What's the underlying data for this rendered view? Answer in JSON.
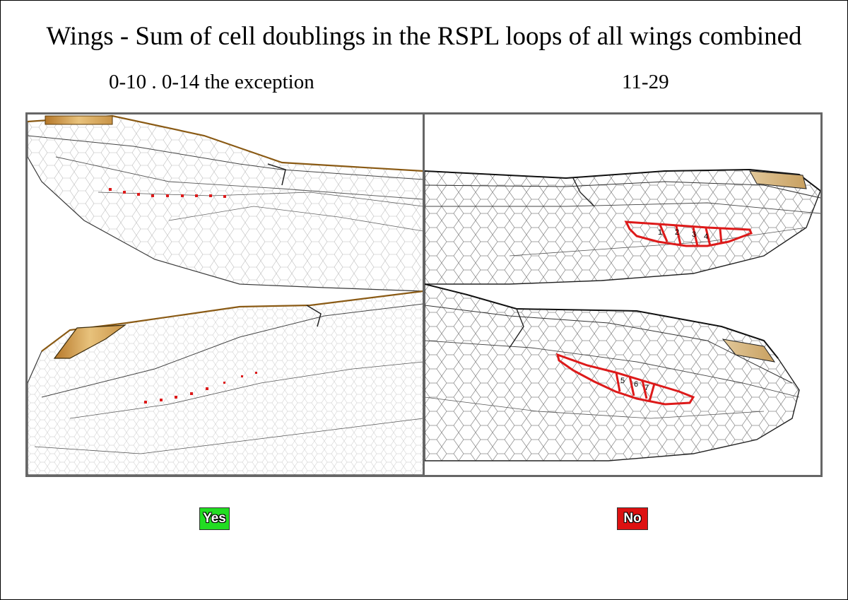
{
  "title": "Wings - Sum of cell doublings in the RSPL loops of all wings combined",
  "left": {
    "subtitle": "0-10 . 0-14 the exception",
    "badge": "Yes",
    "badge_color": "#22dd22"
  },
  "right": {
    "subtitle": "11-29",
    "badge": "No",
    "badge_color": "#dd1111",
    "cell_labels": [
      "1",
      "2",
      "3",
      "4",
      "5",
      "6",
      "7"
    ]
  },
  "colors": {
    "highlight": "#dd1a1a",
    "pterostigma": "#d8a85a",
    "vein": "#333333",
    "panel_border": "#666666"
  }
}
